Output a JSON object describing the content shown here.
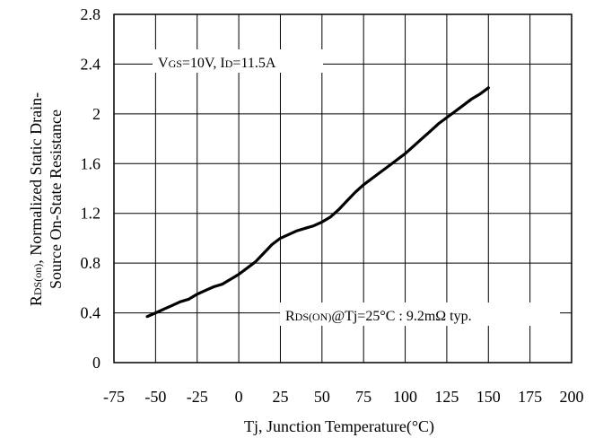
{
  "chart_data": {
    "type": "line",
    "xlabel": "Tj, Junction Temperature(°C)",
    "ylabel_line1": "RDS(on), Normalized Static Drain-",
    "ylabel_line1_main": "R",
    "ylabel_line1_sub": "DS(on)",
    "ylabel_line1_rest": ", Normalized Static Drain-",
    "ylabel_line2": "Source On-State Resistance",
    "xlim": [
      -75,
      200
    ],
    "ylim": [
      0,
      2.8
    ],
    "x_ticks": [
      -75,
      -50,
      -25,
      0,
      25,
      50,
      75,
      100,
      125,
      150,
      175,
      200
    ],
    "x_tick_labels": [
      "-75",
      "-50",
      "-25",
      "0",
      "25",
      "50",
      "75",
      "100",
      "125",
      "150",
      "175",
      "200"
    ],
    "y_ticks": [
      0,
      0.4,
      0.8,
      1.2,
      1.6,
      2,
      2.4,
      2.8
    ],
    "y_tick_labels": [
      "0",
      "0.4",
      "0.8",
      "1.2",
      "1.6",
      "2",
      "2.4",
      "2.8"
    ],
    "grid": true,
    "annotations": {
      "conditions": {
        "vgs_main": "V",
        "vgs_sub": "GS",
        "vgs_rest": "=10V, ",
        "id_main": "I",
        "id_sub": "D",
        "id_rest": "=11.5A"
      },
      "rds_note": {
        "main": "R",
        "sub": "DS(ON)",
        "rest": "@Tj=25°C : 9.2mΩ  typ."
      }
    },
    "series": [
      {
        "x": [
          -55,
          -50,
          -45,
          -40,
          -35,
          -30,
          -25,
          -20,
          -15,
          -10,
          -5,
          0,
          5,
          10,
          15,
          20,
          25,
          30,
          35,
          40,
          45,
          50,
          55,
          60,
          65,
          70,
          75,
          80,
          85,
          90,
          95,
          100,
          105,
          110,
          115,
          120,
          125,
          130,
          135,
          140,
          145,
          150
        ],
        "values": [
          0.37,
          0.4,
          0.43,
          0.46,
          0.49,
          0.51,
          0.55,
          0.58,
          0.61,
          0.63,
          0.67,
          0.71,
          0.76,
          0.81,
          0.88,
          0.95,
          1.0,
          1.03,
          1.06,
          1.08,
          1.1,
          1.13,
          1.17,
          1.23,
          1.3,
          1.37,
          1.43,
          1.48,
          1.53,
          1.58,
          1.63,
          1.68,
          1.74,
          1.8,
          1.86,
          1.92,
          1.97,
          2.02,
          2.07,
          2.12,
          2.16,
          2.21
        ]
      }
    ]
  }
}
